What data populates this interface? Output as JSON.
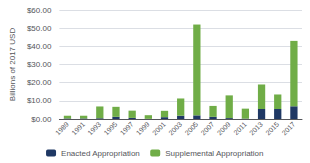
{
  "chart_data": {
    "type": "bar",
    "stacked": true,
    "categories": [
      "1989",
      "1991",
      "1993",
      "1995",
      "1997",
      "1999",
      "2001",
      "2003",
      "2005",
      "2007",
      "2009",
      "2011",
      "2013",
      "2015",
      "2017"
    ],
    "series": [
      {
        "name": "Enacted Appropriation",
        "color": "#1f3864",
        "values": [
          0.3,
          0.3,
          0.4,
          1.2,
          0.6,
          0.1,
          1.0,
          1.8,
          2.0,
          1.2,
          0.5,
          0.2,
          5.5,
          5.5,
          7.0
        ]
      },
      {
        "name": "Supplemental Appropriation",
        "color": "#70ad47",
        "values": [
          1.5,
          1.5,
          6.5,
          5.5,
          4.0,
          2.0,
          3.5,
          9.5,
          50.0,
          6.0,
          12.5,
          5.5,
          13.5,
          8.0,
          36.0
        ]
      }
    ],
    "ylabel": "Billions of 2017 USD",
    "ylim": [
      0,
      60
    ],
    "yticks": [
      {
        "value": 0,
        "label": "$0.00"
      },
      {
        "value": 10,
        "label": "$10.00"
      },
      {
        "value": 20,
        "label": "$20.00"
      },
      {
        "value": 30,
        "label": "$30.00"
      },
      {
        "value": 40,
        "label": "$40.00"
      },
      {
        "value": 50,
        "label": "$50.00"
      },
      {
        "value": 60,
        "label": "$60.00"
      }
    ],
    "grid": true,
    "legend": "bottom"
  }
}
